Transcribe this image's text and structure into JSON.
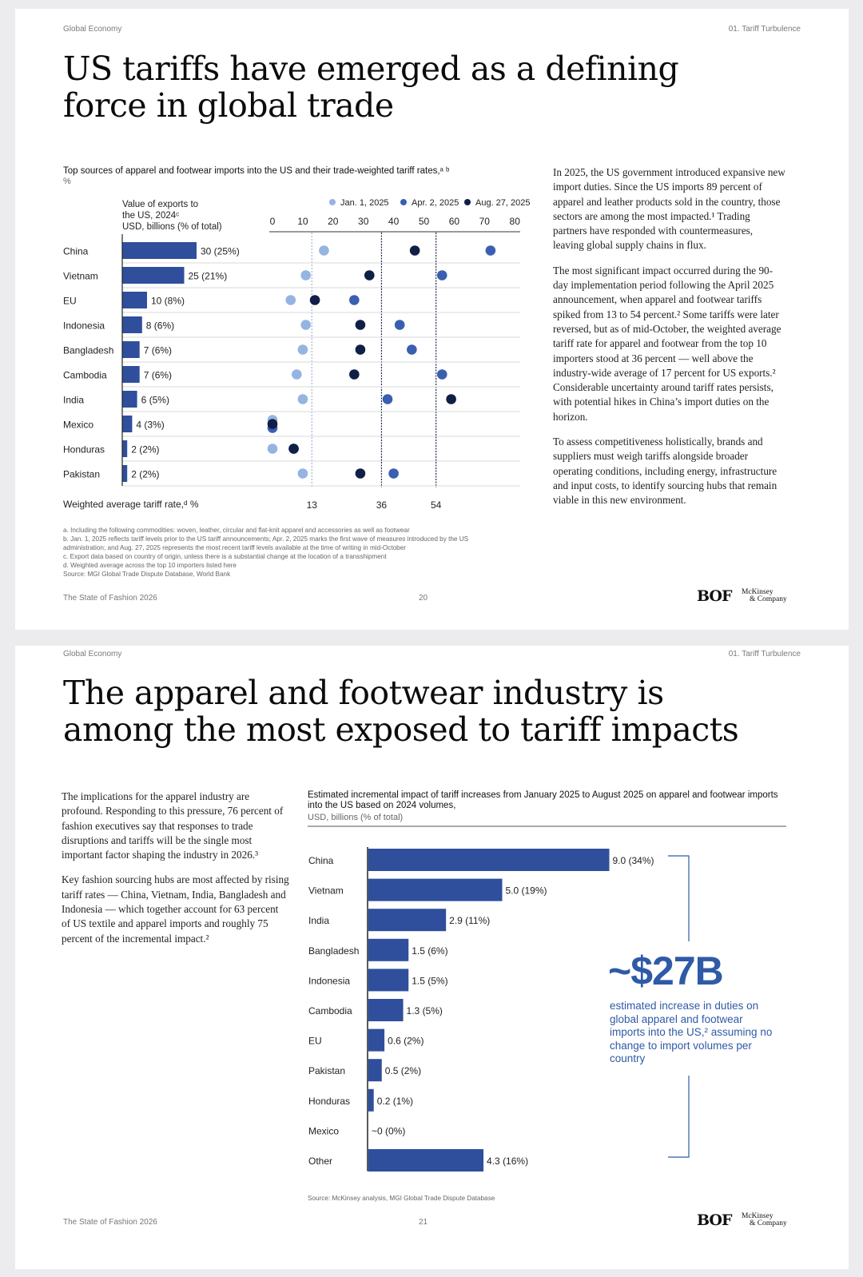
{
  "page1": {
    "header_left": "Global Economy",
    "header_right": "01. Tariff Turbulence",
    "title": "US tariffs have emerged as a defining force in global trade",
    "chart_title": "Top sources of apparel and footwear imports into the US and their trade-weighted tariff rates,ᵃ ᵇ",
    "chart_unit": "%",
    "value_header": [
      "Value of exports to",
      "the US, 2024ᶜ",
      "USD, billions (% of total)"
    ],
    "wavg_label": "Weighted average tariff rate,ᵈ %",
    "body": [
      "In 2025, the US government introduced expansive new import duties. Since the US imports 89 percent of apparel and leather products sold in the country, those sectors are among the most impacted.¹ Trading partners have responded with countermeasures, leaving global supply chains in flux.",
      "The most significant impact occurred during the 90-day implementation period following the April 2025 announcement, when apparel and footwear tariffs spiked from 13 to 54 percent.² Some tariffs were later reversed, but as of mid-October, the weighted average tariff rate for apparel and footwear from the top 10 importers stood at 36 percent — well above the industry-wide average of 17 percent for US exports.² Considerable uncertainty around tariff rates persists, with potential hikes in China’s import duties on the horizon.",
      "To assess competitiveness holistically, brands and suppliers must weigh tariffs alongside broader operating conditions, including energy, infrastructure and input costs, to identify sourcing hubs that remain viable in this new environment."
    ],
    "footnotes": [
      "a. Including the following commodities: woven, leather, circular and flat-knit apparel and accessories as well as footwear",
      "b. Jan. 1, 2025 reflects tariff levels prior to the US tariff announcements; Apr. 2, 2025 marks the first wave of measures introduced by the US",
      "administration; and Aug. 27, 2025 represents the most recent tariff levels available at the time of writing in mid-October",
      "c. Export data based on country of origin, unless there is a substantial change at the location of a transshipment",
      "d. Weighted average across the top 10 importers listed here",
      "Source: MGI Global Trade Dispute Database, World Bank"
    ],
    "footer_left": "The State of Fashion 2026",
    "page_number": "20"
  },
  "page2": {
    "header_left": "Global Economy",
    "header_right": "01. Tariff Turbulence",
    "title": "The apparel and footwear industry is among the most exposed to tariff impacts",
    "body": [
      "The implications for the apparel industry are profound. Responding to this pressure, 76 percent of fashion executives say that responses to trade disruptions and tariffs will be the single most important factor shaping the industry in 2026.³",
      "Key fashion sourcing hubs are most affected by rising tariff rates — China, Vietnam, India, Bangladesh and Indonesia — which together account for 63 percent of US textile and apparel imports and roughly 75 percent of the incremental impact.²"
    ],
    "chart_title": "Estimated incremental impact of tariff increases from January 2025 to August 2025 on apparel and footwear imports into the US based on 2024 volumes,",
    "chart_unit": "USD, billions (% of total)",
    "callout_value": "~$27B",
    "callout_text": "estimated increase in duties on global apparel and footwear imports into the US,² assuming no change to import volumes per country",
    "source": "Source: McKinsey analysis, MGI Global Trade Dispute Database",
    "footer_left": "The State of Fashion 2026",
    "page_number": "21"
  },
  "brand": {
    "bof": "BOF",
    "mckinsey_1": "McKinsey",
    "mckinsey_2": "& Company"
  },
  "colors": {
    "bar": "#2f4f9c",
    "jan": "#95b4e2",
    "apr": "#3a5fb0",
    "aug": "#0f1f45",
    "accent": "#2f5aa6"
  },
  "chart_data": [
    {
      "type": "bar",
      "title": "Top sources of apparel and footwear imports into the US — value of exports to the US, 2024",
      "ylabel": "USD, billions (% of total)",
      "categories": [
        "China",
        "Vietnam",
        "EU",
        "Indonesia",
        "Bangladesh",
        "Cambodia",
        "India",
        "Mexico",
        "Honduras",
        "Pakistan"
      ],
      "values": [
        30,
        25,
        10,
        8,
        7,
        7,
        6,
        4,
        2,
        2
      ],
      "labels": [
        "30 (25%)",
        "25 (21%)",
        "10 (8%)",
        "8 (6%)",
        "7 (6%)",
        "7 (6%)",
        "6 (5%)",
        "4 (3%)",
        "2 (2%)",
        "2 (2%)"
      ]
    },
    {
      "type": "scatter",
      "title": "Trade-weighted tariff rates, %",
      "categories": [
        "China",
        "Vietnam",
        "EU",
        "Indonesia",
        "Bangladesh",
        "Cambodia",
        "India",
        "Mexico",
        "Honduras",
        "Pakistan"
      ],
      "x_ticks": [
        0,
        10,
        20,
        30,
        40,
        50,
        60,
        70,
        80
      ],
      "xlim": [
        0,
        80
      ],
      "series": [
        {
          "name": "Jan. 1, 2025",
          "values": [
            17,
            11,
            6,
            11,
            10,
            8,
            10,
            0,
            0,
            10
          ]
        },
        {
          "name": "Apr. 2, 2025",
          "values": [
            72,
            56,
            27,
            42,
            46,
            56,
            38,
            0,
            7,
            40
          ]
        },
        {
          "name": "Aug. 27, 2025",
          "values": [
            47,
            32,
            14,
            29,
            29,
            27,
            59,
            0,
            7,
            29
          ]
        }
      ],
      "reference_lines": [
        {
          "label": "13",
          "value": 13
        },
        {
          "label": "36",
          "value": 36
        },
        {
          "label": "54",
          "value": 54
        }
      ]
    },
    {
      "type": "bar",
      "title": "Estimated incremental impact of tariff increases from January 2025 to August 2025 on apparel and footwear imports into the US based on 2024 volumes",
      "ylabel": "USD, billions (% of total)",
      "categories": [
        "China",
        "Vietnam",
        "India",
        "Bangladesh",
        "Indonesia",
        "Cambodia",
        "EU",
        "Pakistan",
        "Honduras",
        "Mexico",
        "Other"
      ],
      "values": [
        9.0,
        5.0,
        2.9,
        1.5,
        1.5,
        1.3,
        0.6,
        0.5,
        0.2,
        0.0,
        4.3
      ],
      "labels": [
        "9.0 (34%)",
        "5.0 (19%)",
        "2.9 (11%)",
        "1.5 (6%)",
        "1.5 (5%)",
        "1.3 (5%)",
        "0.6 (2%)",
        "0.5 (2%)",
        "0.2 (1%)",
        "~0 (0%)",
        "4.3 (16%)"
      ]
    }
  ]
}
